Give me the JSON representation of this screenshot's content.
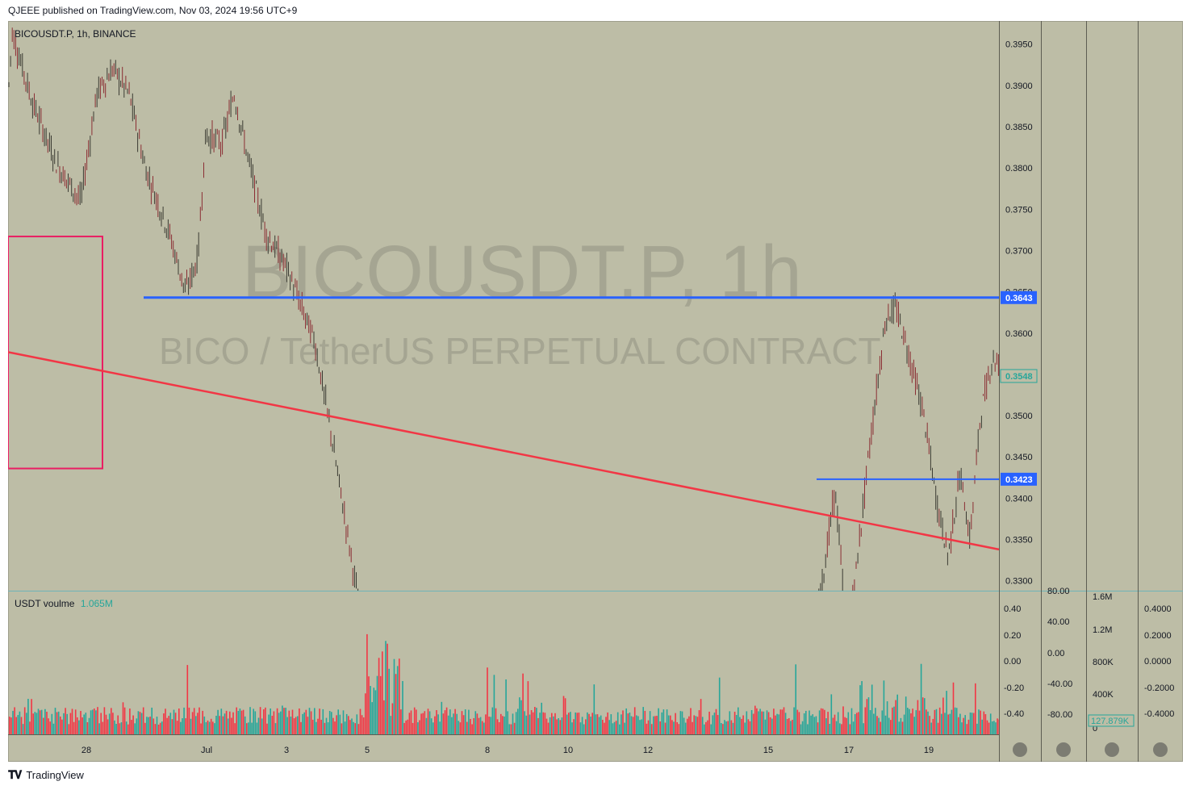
{
  "header": {
    "published": "QJEEE published on TradingView.com, Nov 03, 2024 19:56 UTC+9"
  },
  "footer": {
    "brand": "TradingView"
  },
  "symbol": {
    "legend": "BICOUSDT.P, 1h, BINANCE",
    "watermark_title": "BICOUSDT.P, 1h",
    "watermark_subtitle": "BICO / TetherUS PERPETUAL CONTRACT"
  },
  "volume_pane": {
    "label": "USDT voulme",
    "value": "1.065M"
  },
  "colors": {
    "background": "#bdbda6",
    "up": "#26a69a",
    "down": "#f23645",
    "candle": "#3b3b33",
    "level": "#2962ff",
    "trendline": "#f23645",
    "box": "#e91e63"
  },
  "chart_data": {
    "type": "candlestick",
    "symbol": "BICOUSDT.P",
    "interval": "1h",
    "exchange": "BINANCE",
    "x_tick_labels": [
      "28",
      "Jul",
      "3",
      "5",
      "8",
      "10",
      "12",
      "15",
      "17",
      "19"
    ],
    "price_axis": {
      "ticks": [
        "0.3950",
        "0.3900",
        "0.3850",
        "0.3800",
        "0.3750",
        "0.3700",
        "0.3650",
        "0.3600",
        "0.3500",
        "0.3450",
        "0.3400",
        "0.3350",
        "0.3300"
      ],
      "ylim": [
        0.3288,
        0.3978
      ],
      "last_price": "0.3548"
    },
    "horizontal_levels": [
      {
        "price": 0.3643,
        "label": "0.3643"
      },
      {
        "price": 0.3423,
        "label": "0.3423"
      }
    ],
    "trendline": {
      "from": {
        "x": "Jun 26",
        "price": 0.3577
      },
      "to": {
        "x": "Jul 20",
        "price": 0.3338
      }
    },
    "rectangle": {
      "price_top": 0.3717,
      "price_bottom": 0.3436
    },
    "path_anchors": [
      [
        0,
        0.3885
      ],
      [
        5,
        0.3965
      ],
      [
        30,
        0.388
      ],
      [
        60,
        0.3805
      ],
      [
        90,
        0.376
      ],
      [
        110,
        0.389
      ],
      [
        130,
        0.392
      ],
      [
        150,
        0.389
      ],
      [
        170,
        0.38
      ],
      [
        200,
        0.372
      ],
      [
        220,
        0.365
      ],
      [
        235,
        0.369
      ],
      [
        245,
        0.384
      ],
      [
        265,
        0.383
      ],
      [
        280,
        0.389
      ],
      [
        300,
        0.38
      ],
      [
        320,
        0.372
      ],
      [
        345,
        0.368
      ],
      [
        360,
        0.364
      ],
      [
        380,
        0.359
      ],
      [
        400,
        0.348
      ],
      [
        420,
        0.336
      ],
      [
        440,
        0.324
      ],
      [
        1000,
        0.324
      ],
      [
        1015,
        0.334
      ],
      [
        1025,
        0.341
      ],
      [
        1040,
        0.323
      ],
      [
        1052,
        0.332
      ],
      [
        1065,
        0.344
      ],
      [
        1075,
        0.352
      ],
      [
        1088,
        0.362
      ],
      [
        1100,
        0.363
      ],
      [
        1115,
        0.358
      ],
      [
        1135,
        0.35
      ],
      [
        1150,
        0.34
      ],
      [
        1165,
        0.333
      ],
      [
        1180,
        0.343
      ],
      [
        1192,
        0.335
      ],
      [
        1205,
        0.35
      ],
      [
        1220,
        0.357
      ],
      [
        1230,
        0.356
      ],
      [
        1237,
        0.3548
      ]
    ],
    "volume_axes": {
      "a": [
        "0.40",
        "0.20",
        "0.00",
        "-0.20",
        "-0.40"
      ],
      "b": [
        "80.00",
        "40.00",
        "0.00",
        "-40.00",
        "-80.00"
      ],
      "c": [
        "1.6M",
        "1.2M",
        "800K",
        "400K",
        "0"
      ],
      "c_last": "127.879K",
      "d": [
        "0.4000",
        "0.2000",
        "0.0000",
        "-0.2000",
        "-0.4000"
      ]
    }
  }
}
